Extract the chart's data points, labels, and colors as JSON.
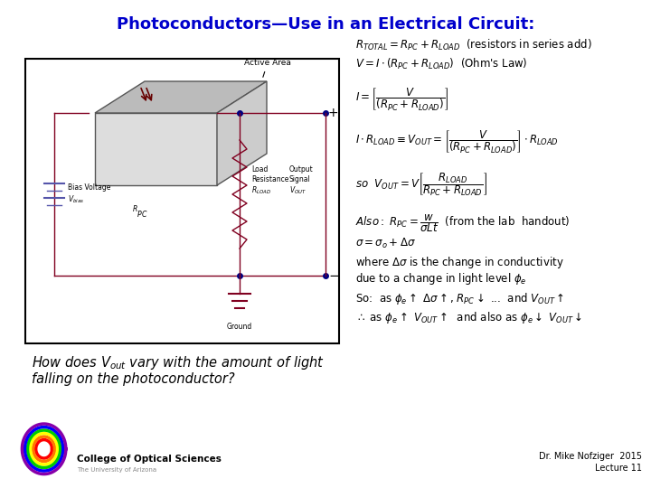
{
  "title": "Photoconductors—Use in an Electrical Circuit:",
  "title_color": "#0000CC",
  "title_fontsize": 13,
  "bg_color": "#FFFFFF",
  "circuit_line_color": "#8B0000",
  "circuit_line_color2": "#8B0000",
  "eq1": "$R_{TOTAL} = R_{PC} + R_{LOAD}$  (resistors in series add)",
  "eq2": "$V = I \\cdot (R_{PC} + R_{LOAD})$  (Ohm's Law)",
  "eq3": "$I = \\left[\\dfrac{V}{(R_{PC} + R_{LOAD})}\\right]$",
  "eq4": "$I \\cdot R_{LOAD} \\equiv V_{OUT} = \\left[\\dfrac{V}{(R_{PC} + R_{LOAD})}\\right] \\cdot R_{LOAD}$",
  "eq5": "$so\\ \\ V_{OUT} = V\\left[\\dfrac{R_{LOAD}}{R_{PC} + R_{LOAD}}\\right]$",
  "eq6": "$Also:\\ R_{PC} = \\dfrac{w}{\\sigma Lt}$  (from the lab  handout)",
  "eq7": "$\\sigma = \\sigma_o + \\Delta\\sigma$",
  "eq8": "where $\\Delta\\sigma$ is the change in conductivity",
  "eq9": "due to a change in light level $\\phi_e$",
  "eq10": "So:  as $\\phi_e \\uparrow$ $\\Delta\\sigma \\uparrow$, $R_{PC} \\downarrow$ ...  and $V_{OUT} \\uparrow$",
  "eq11": "$\\therefore$ as $\\phi_e \\uparrow$ $V_{OUT} \\uparrow$  and also as $\\phi_e \\downarrow$ $V_{OUT} \\downarrow$"
}
